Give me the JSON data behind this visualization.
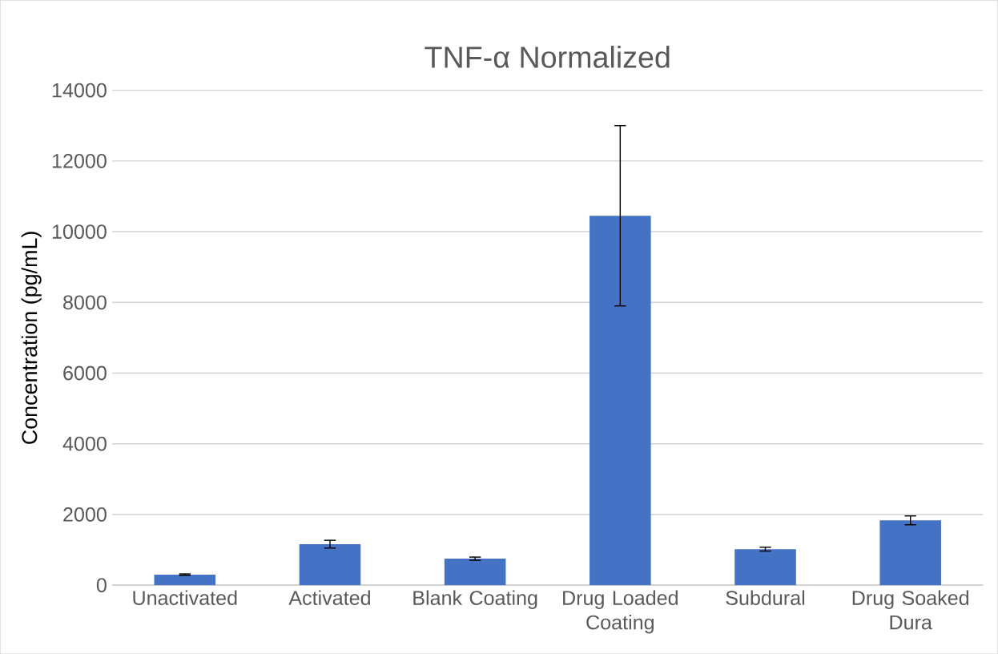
{
  "chart_data": {
    "type": "bar",
    "title": "TNF-α Normalized",
    "ylabel": "Concentration (pg/mL)",
    "categories": [
      "Unactivated",
      "Activated",
      "Blank Coating",
      "Drug Loaded Coating",
      "Subdural",
      "Drug Soaked Dura"
    ],
    "values": [
      300,
      1160,
      750,
      10450,
      1020,
      1835
    ],
    "errors": [
      20,
      110,
      45,
      2550,
      55,
      125
    ],
    "color": "#4472c4",
    "ylim": [
      0,
      14000
    ],
    "yticks": [
      0,
      2000,
      4000,
      6000,
      8000,
      10000,
      12000,
      14000
    ],
    "grid": "y"
  }
}
